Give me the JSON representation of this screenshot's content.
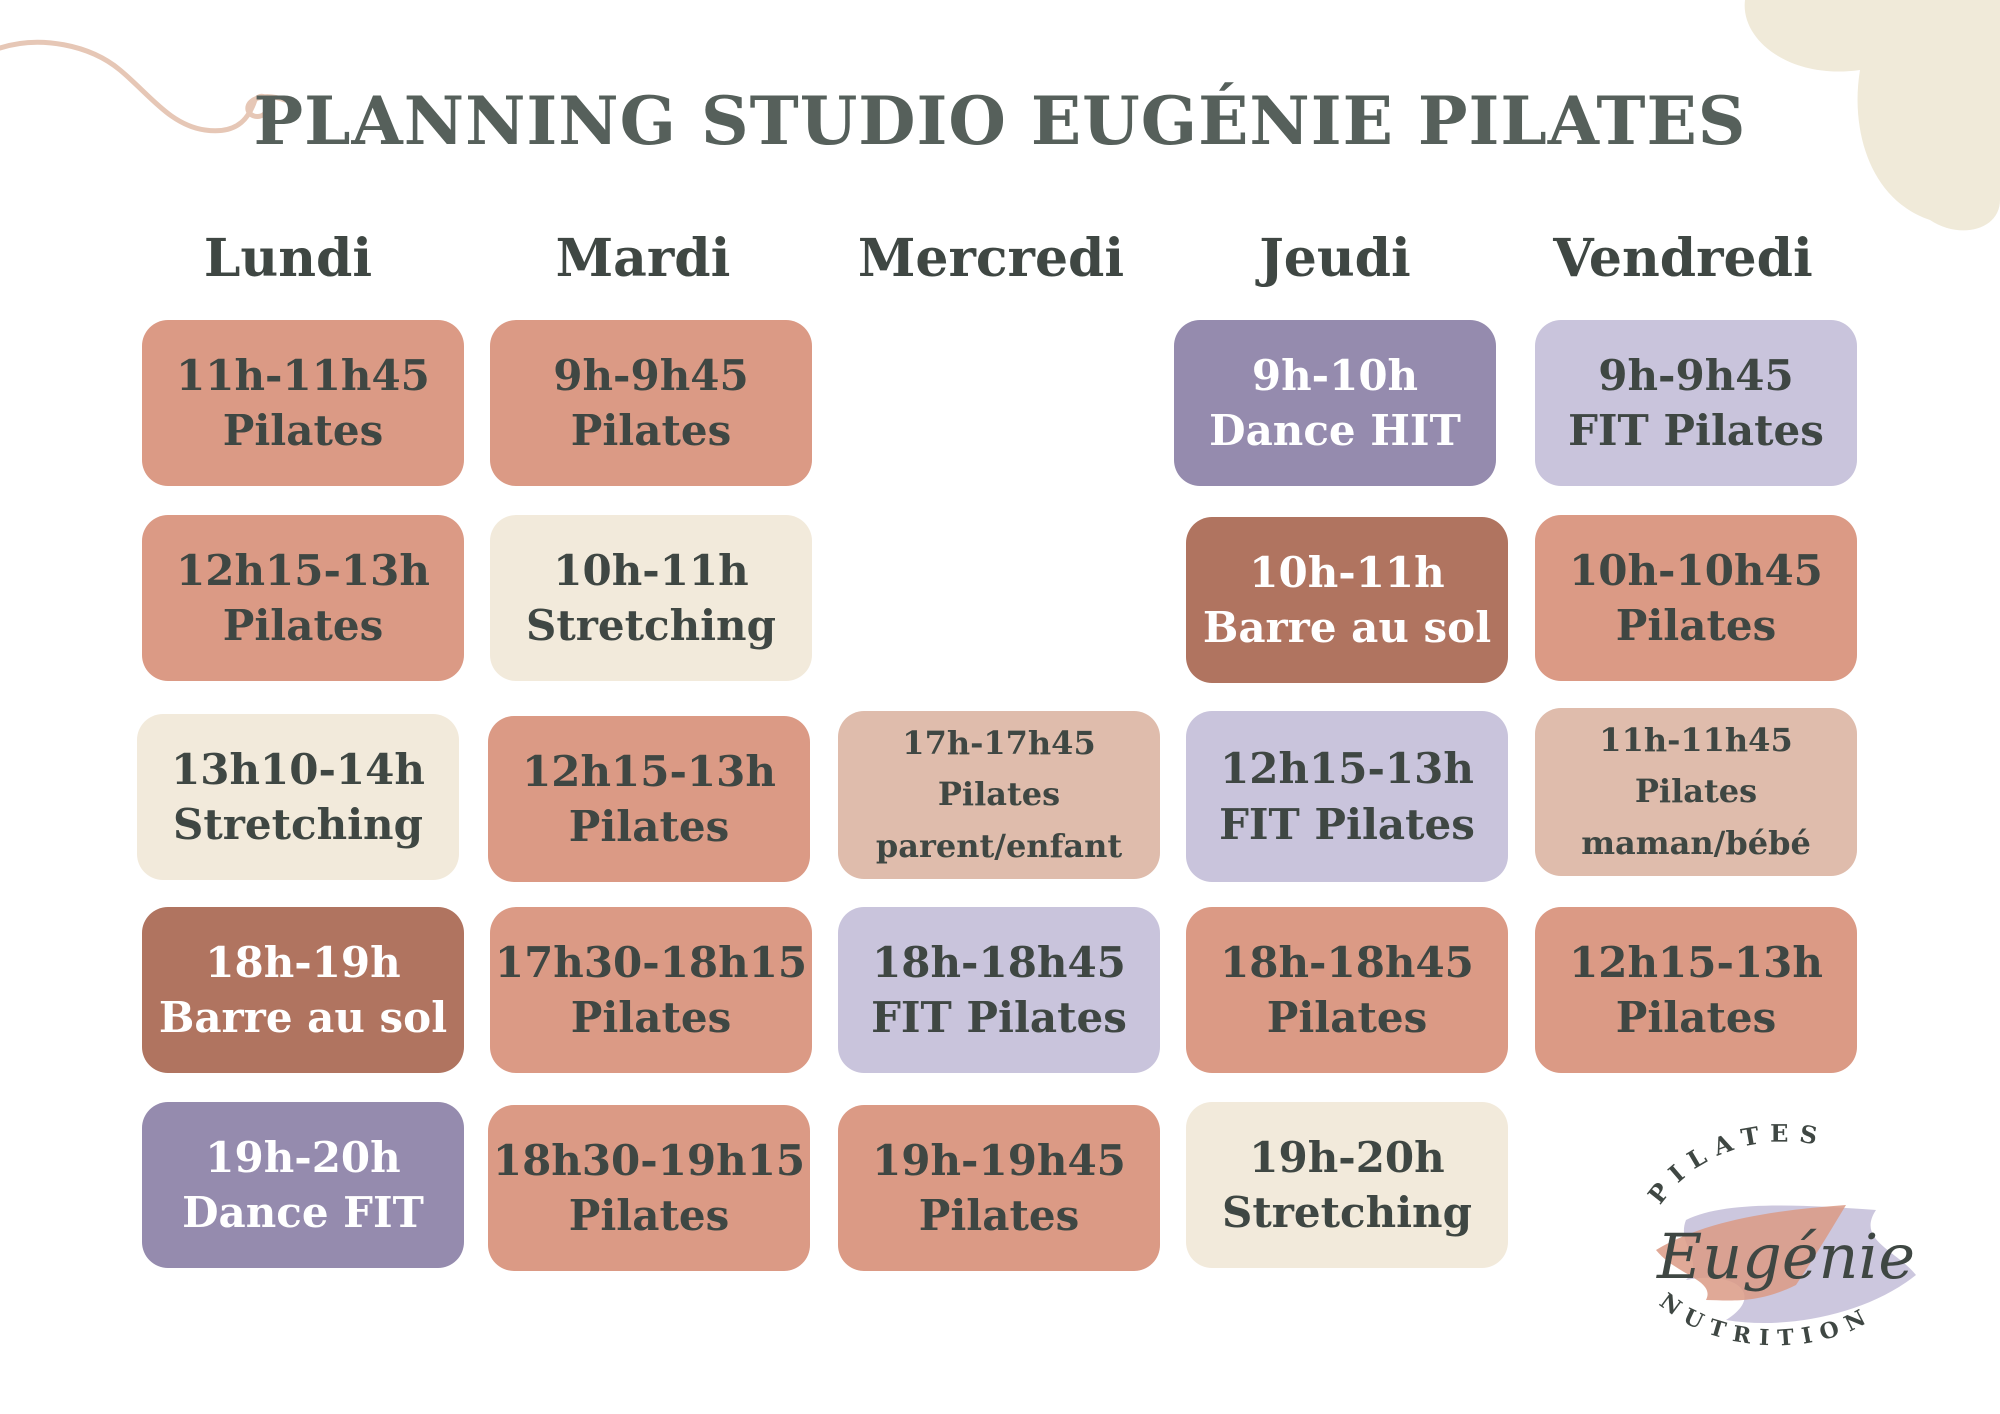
{
  "title": "PLANNING STUDIO EUGÉNIE PILATES",
  "days": [
    "Lundi",
    "Mardi",
    "Mercredi",
    "Jeudi",
    "Vendredi"
  ],
  "colors": {
    "salmon": "#db9a85",
    "cream": "#f2eadb",
    "light_salmon": "#dfbcac",
    "lavender": "#c9c4dc",
    "purple": "#958bae",
    "brown": "#b07460",
    "text": "#3f4743",
    "title": "#56605b"
  },
  "schedule": {
    "lundi": [
      {
        "time": "11h-11h45",
        "name": "Pilates",
        "color": "salmon"
      },
      {
        "time": "12h15-13h",
        "name": "Pilates",
        "color": "salmon"
      },
      {
        "time": "13h10-14h",
        "name": "Stretching",
        "color": "cream"
      },
      {
        "time": "18h-19h",
        "name": "Barre au sol",
        "color": "brown"
      },
      {
        "time": "19h-20h",
        "name": "Dance FIT",
        "color": "purple"
      }
    ],
    "mardi": [
      {
        "time": "9h-9h45",
        "name": "Pilates",
        "color": "salmon"
      },
      {
        "time": "10h-11h",
        "name": "Stretching",
        "color": "cream"
      },
      {
        "time": "12h15-13h",
        "name": "Pilates",
        "color": "salmon"
      },
      {
        "time": "17h30-18h15",
        "name": "Pilates",
        "color": "salmon"
      },
      {
        "time": "18h30-19h15",
        "name": "Pilates",
        "color": "salmon"
      }
    ],
    "mercredi": [
      {
        "time": "17h-17h45",
        "name": "Pilates",
        "sub": "parent/enfant",
        "color": "light_salmon"
      },
      {
        "time": "18h-18h45",
        "name": "FIT Pilates",
        "color": "lavender"
      },
      {
        "time": "19h-19h45",
        "name": "Pilates",
        "color": "salmon"
      }
    ],
    "jeudi": [
      {
        "time": "9h-10h",
        "name": "Dance HIT",
        "color": "purple"
      },
      {
        "time": "10h-11h",
        "name": "Barre au sol",
        "color": "brown"
      },
      {
        "time": "12h15-13h",
        "name": "FIT Pilates",
        "color": "lavender"
      },
      {
        "time": "18h-18h45",
        "name": "Pilates",
        "color": "salmon"
      },
      {
        "time": "19h-20h",
        "name": "Stretching",
        "color": "cream"
      }
    ],
    "vendredi": [
      {
        "time": "9h-9h45",
        "name": "FIT Pilates",
        "color": "lavender"
      },
      {
        "time": "10h-10h45",
        "name": "Pilates",
        "color": "salmon"
      },
      {
        "time": "11h-11h45",
        "name": "Pilates",
        "sub": "maman/bébé",
        "color": "light_salmon"
      },
      {
        "time": "12h15-13h",
        "name": "Pilates",
        "color": "salmon"
      }
    ]
  },
  "logo": {
    "top_text": "PILATES",
    "script_text": "Eugénie",
    "bottom_text": "NUTRITION"
  }
}
